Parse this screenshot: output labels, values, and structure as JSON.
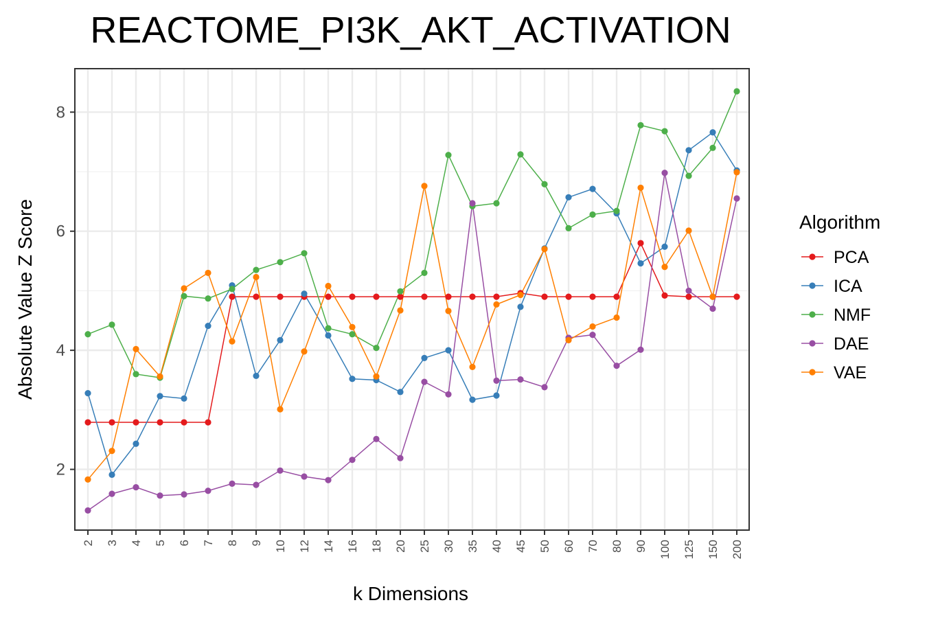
{
  "chart_data": {
    "type": "line",
    "title": "REACTOME_PI3K_AKT_ACTIVATION",
    "xlabel": "k Dimensions",
    "ylabel": "Absolute Value Z Score",
    "categories": [
      "2",
      "3",
      "4",
      "5",
      "6",
      "7",
      "8",
      "9",
      "10",
      "12",
      "14",
      "16",
      "18",
      "20",
      "25",
      "30",
      "35",
      "40",
      "45",
      "50",
      "60",
      "70",
      "80",
      "90",
      "100",
      "125",
      "150",
      "200"
    ],
    "ylim": [
      0.98,
      8.73
    ],
    "yticks": [
      2,
      4,
      6,
      8
    ],
    "grid": true,
    "legend": {
      "title": "Algorithm",
      "position": "right"
    },
    "series": [
      {
        "name": "PCA",
        "color": "#e41a1c",
        "values": [
          2.79,
          2.79,
          2.79,
          2.79,
          2.79,
          2.79,
          4.9,
          4.9,
          4.9,
          4.9,
          4.9,
          4.9,
          4.9,
          4.9,
          4.9,
          4.9,
          4.9,
          4.9,
          4.96,
          4.9,
          4.9,
          4.9,
          4.9,
          5.8,
          4.92,
          4.9,
          4.9,
          4.9
        ]
      },
      {
        "name": "ICA",
        "color": "#377eb8",
        "values": [
          3.28,
          1.91,
          2.43,
          3.23,
          3.19,
          4.41,
          5.09,
          3.57,
          4.17,
          4.95,
          4.25,
          3.52,
          3.5,
          3.3,
          3.87,
          4.0,
          3.17,
          3.24,
          4.73,
          5.71,
          6.57,
          6.71,
          6.3,
          5.46,
          5.74,
          7.36,
          7.66,
          7.02
        ]
      },
      {
        "name": "NMF",
        "color": "#4daf4a",
        "values": [
          4.27,
          4.43,
          3.6,
          3.54,
          4.91,
          4.87,
          5.03,
          5.35,
          5.48,
          5.63,
          4.37,
          4.27,
          4.04,
          4.99,
          5.3,
          7.28,
          6.42,
          6.47,
          7.29,
          6.79,
          6.05,
          6.28,
          6.34,
          7.78,
          7.68,
          6.93,
          7.4,
          8.35
        ]
      },
      {
        "name": "DAE",
        "color": "#984ea3",
        "values": [
          1.31,
          1.59,
          1.7,
          1.56,
          1.58,
          1.64,
          1.76,
          1.74,
          1.98,
          1.88,
          1.82,
          2.16,
          2.51,
          2.19,
          3.47,
          3.26,
          6.47,
          3.49,
          3.51,
          3.38,
          4.21,
          4.26,
          3.74,
          4.01,
          6.98,
          5.0,
          4.7,
          6.55
        ]
      },
      {
        "name": "VAE",
        "color": "#ff7f00",
        "values": [
          1.83,
          2.31,
          4.02,
          3.56,
          5.04,
          5.3,
          4.15,
          5.23,
          3.01,
          3.98,
          5.08,
          4.39,
          3.56,
          4.67,
          6.76,
          4.66,
          3.72,
          4.77,
          4.93,
          5.7,
          4.17,
          4.4,
          4.55,
          6.73,
          5.4,
          6.01,
          4.9,
          6.99
        ]
      }
    ]
  }
}
